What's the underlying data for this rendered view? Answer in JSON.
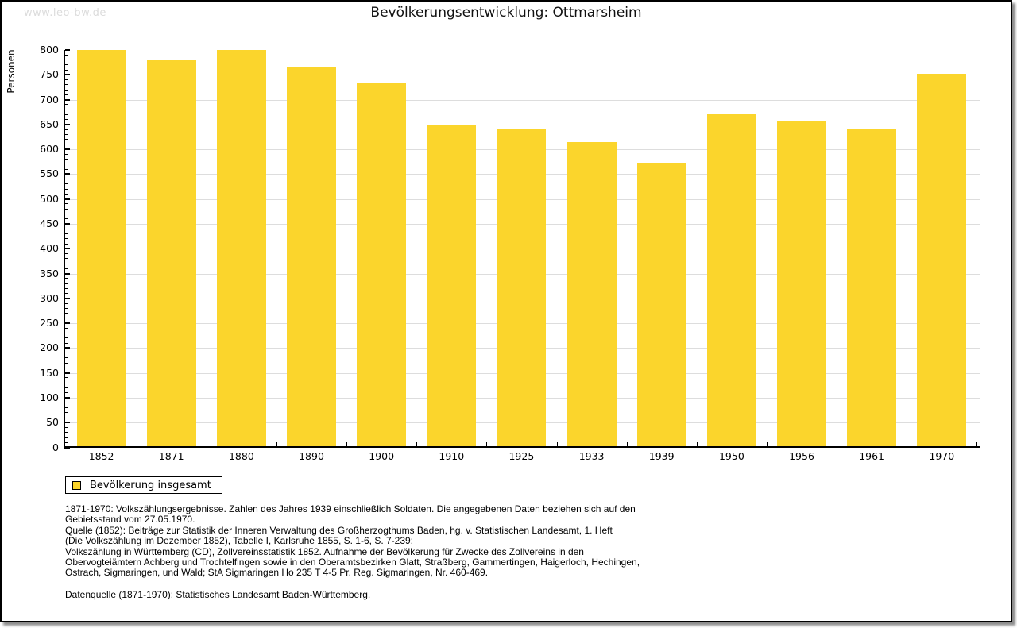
{
  "header": {
    "watermark": "www.leo-bw.de",
    "title": "Bevölkerungsentwicklung: Ottmarsheim"
  },
  "chart_data": {
    "type": "bar",
    "title": "Bevölkerungsentwicklung: Ottmarsheim",
    "xlabel": "",
    "ylabel": "Personen",
    "legend": "Bevölkerung insgesamt",
    "legend_position": "bottom-left",
    "categories": [
      "1852",
      "1871",
      "1880",
      "1890",
      "1900",
      "1910",
      "1925",
      "1933",
      "1939",
      "1950",
      "1956",
      "1961",
      "1970"
    ],
    "values": [
      800,
      780,
      800,
      767,
      733,
      648,
      641,
      614,
      573,
      672,
      657,
      642,
      752
    ],
    "ylim": [
      0,
      800
    ],
    "ytick_step": 50,
    "ytick_minor_step": 10,
    "grid": true,
    "colors": {
      "bar": "#FBD52C",
      "grid": "#DDDDDD",
      "axis": "#000000",
      "watermark": "#DCDCDC"
    }
  },
  "footer": {
    "note_lines": [
      "1871-1970: Volkszählungsergebnisse. Zahlen des Jahres 1939 einschließlich Soldaten. Die angegebenen Daten beziehen sich auf den",
      "Gebietsstand vom 27.05.1970.",
      "Quelle (1852): Beiträge zur Statistik der Inneren Verwaltung des Großherzogthums Baden, hg. v. Statistischen Landesamt, 1. Heft",
      "(Die Volkszählung im Dezember 1852), Tabelle I, Karlsruhe 1855, S. 1-6, S. 7-239;",
      "Volkszählung in Württemberg (CD), Zollvereinsstatistik 1852. Aufnahme der Bevölkerung für Zwecke des Zollvereins in den",
      "Obervogteiämtern Achberg und Trochtelfingen sowie in den Oberamtsbezirken Glatt, Straßberg, Gammertingen, Haigerloch, Hechingen,",
      "Ostrach, Sigmaringen, und Wald; StA Sigmaringen Ho 235 T 4-5 Pr. Reg. Sigmaringen, Nr. 460-469."
    ],
    "datasource": "Datenquelle (1871-1970): Statistisches Landesamt Baden-Württemberg."
  }
}
